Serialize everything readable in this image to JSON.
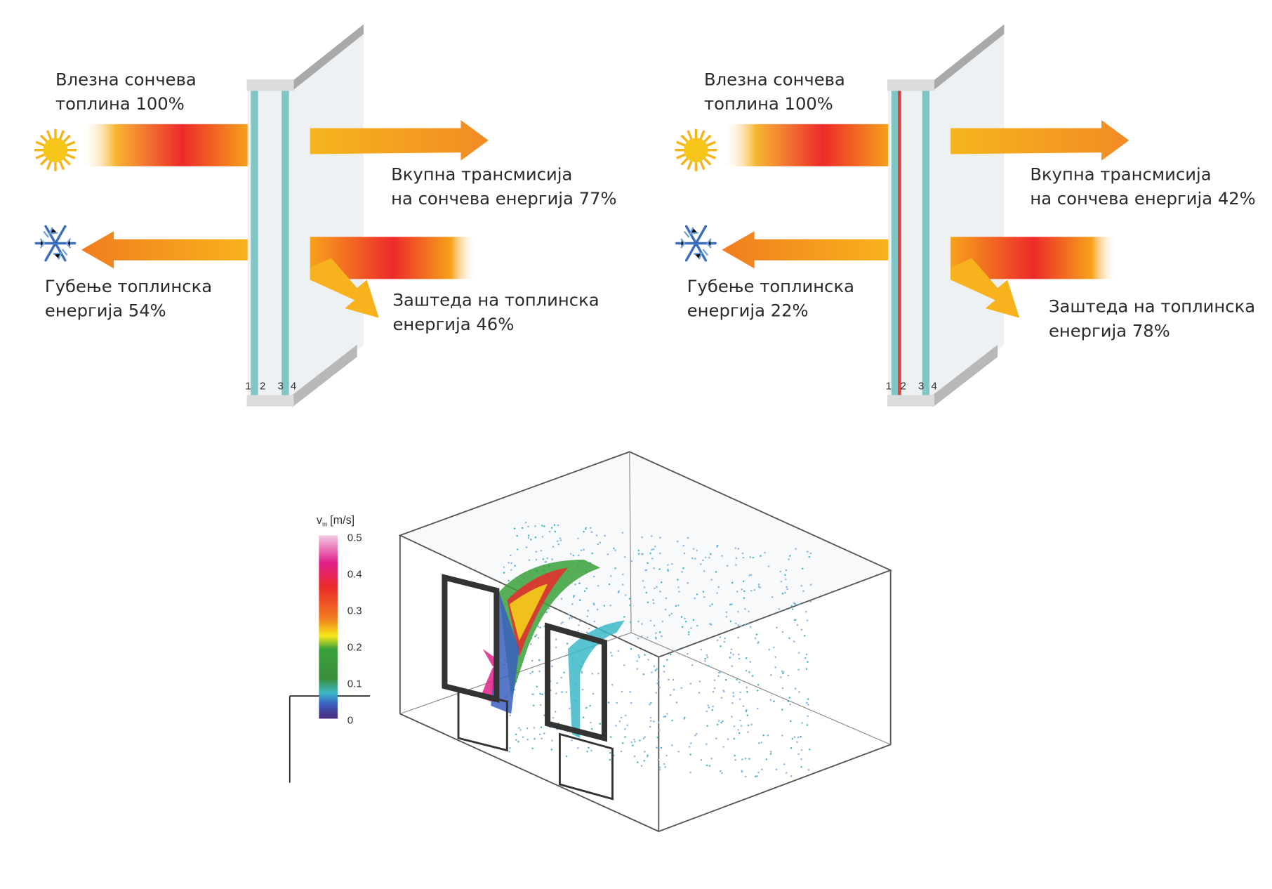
{
  "panels": [
    {
      "incoming": [
        "Влезна сончева",
        "топлина 100%"
      ],
      "transmission": [
        "Вкупна трансмисија",
        "на сончева енергија 77%"
      ],
      "loss": [
        "Губење топлинска",
        "енергија 54%"
      ],
      "saving": [
        "Заштеда на топлинска",
        "енергија 46%"
      ],
      "surfaces": [
        "1",
        "2",
        "3",
        "4"
      ],
      "coating": false
    },
    {
      "incoming": [
        "Влезна сончева",
        "топлина 100%"
      ],
      "transmission": [
        "Вкупна трансмисија",
        "на сончева енергија 42%"
      ],
      "loss": [
        "Губење топлинска",
        "енергија 22%"
      ],
      "saving": [
        "Заштеда на топлинска",
        "енергија 78%"
      ],
      "surfaces": [
        "1",
        "2",
        "3",
        "4"
      ],
      "coating": true
    }
  ],
  "icons": {
    "sun": "sun-icon",
    "cold": "snowflake-icon"
  },
  "colors": {
    "arrow_hot": "#e8262a",
    "arrow_warm": "#f7a21b",
    "glass": "#7fc6c4",
    "coating": "#e0403a"
  },
  "simulation": {
    "legend_title": "v",
    "legend_sub": "m",
    "legend_unit": "[m/s]",
    "ticks": [
      "0.5",
      "0.4",
      "0.3",
      "0.2",
      "0.1",
      "0"
    ]
  }
}
